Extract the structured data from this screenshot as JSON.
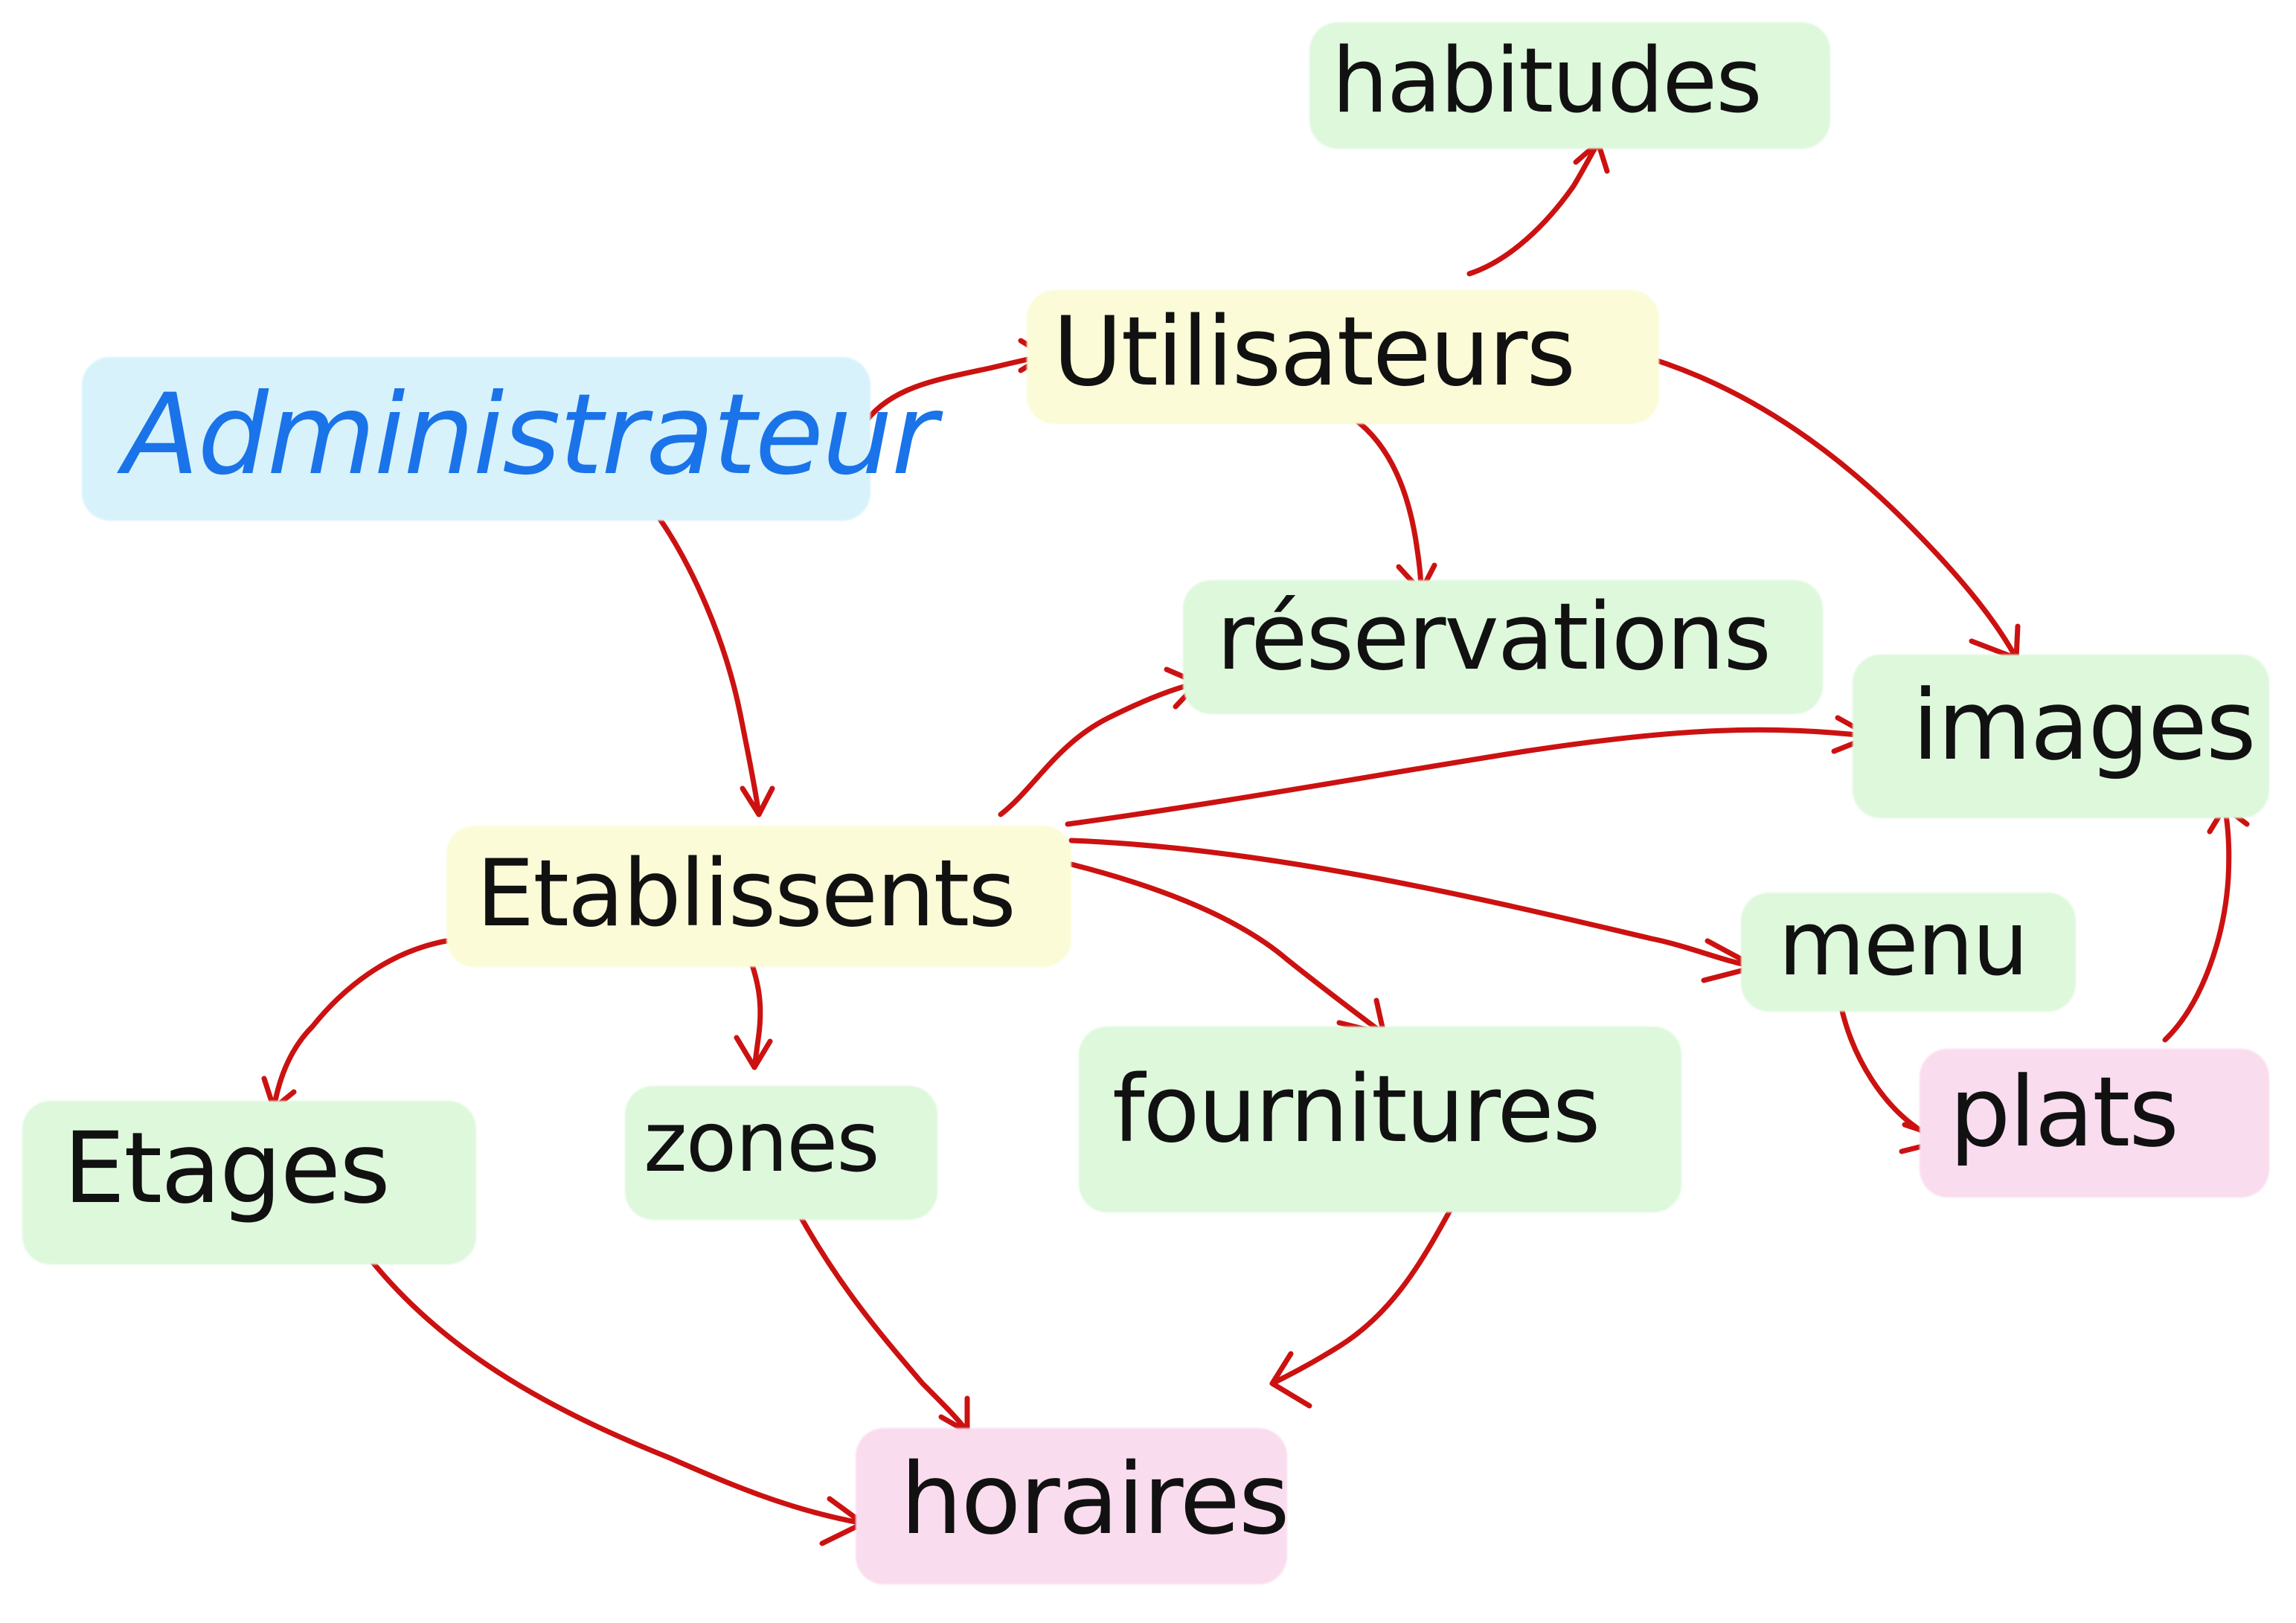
{
  "colors": {
    "arrow": "#cc1111",
    "text_default": "#111111",
    "text_admin": "#1a73e8",
    "hl_blue": "#d7f2fb",
    "hl_yellow": "#fbfbd8",
    "hl_green": "#def8dc",
    "hl_pink": "#fadcef"
  },
  "nodes": {
    "administrateur": {
      "label": "Administrateur",
      "highlight": "blue"
    },
    "utilisateurs": {
      "label": "Utilisateurs",
      "highlight": "yellow"
    },
    "habitudes": {
      "label": "habitudes",
      "highlight": "green"
    },
    "reservations": {
      "label": "réservations",
      "highlight": "green"
    },
    "images": {
      "label": "images",
      "highlight": "green"
    },
    "etablissements": {
      "label": "Etablissents",
      "highlight": "yellow"
    },
    "menu": {
      "label": "menu",
      "highlight": "green"
    },
    "plats": {
      "label": "plats",
      "highlight": "pink"
    },
    "etages": {
      "label": "Etages",
      "highlight": "green"
    },
    "zones": {
      "label": "zones",
      "highlight": "green"
    },
    "fournitures": {
      "label": "fournitures",
      "highlight": "green"
    },
    "horaires": {
      "label": "horaires",
      "highlight": "pink"
    }
  },
  "edges": [
    {
      "from": "administrateur",
      "to": "utilisateurs"
    },
    {
      "from": "administrateur",
      "to": "etablissements"
    },
    {
      "from": "utilisateurs",
      "to": "habitudes"
    },
    {
      "from": "utilisateurs",
      "to": "reservations"
    },
    {
      "from": "utilisateurs",
      "to": "images"
    },
    {
      "from": "etablissements",
      "to": "reservations"
    },
    {
      "from": "etablissements",
      "to": "images"
    },
    {
      "from": "etablissements",
      "to": "menu"
    },
    {
      "from": "etablissements",
      "to": "fournitures"
    },
    {
      "from": "etablissements",
      "to": "etages"
    },
    {
      "from": "etablissements",
      "to": "zones"
    },
    {
      "from": "menu",
      "to": "plats"
    },
    {
      "from": "plats",
      "to": "images"
    },
    {
      "from": "etages",
      "to": "horaires"
    },
    {
      "from": "zones",
      "to": "horaires"
    },
    {
      "from": "fournitures",
      "to": "horaires"
    }
  ]
}
